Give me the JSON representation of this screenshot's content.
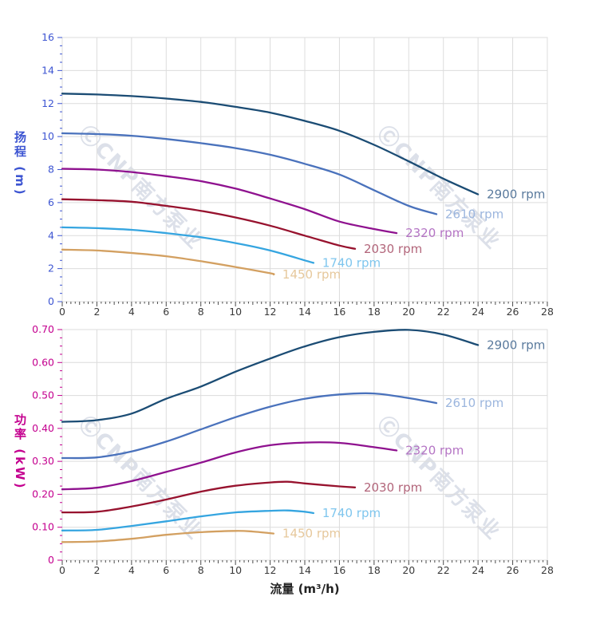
{
  "page": {
    "background": "#ffffff"
  },
  "watermark": {
    "text": "ⒸCNP南方泵业",
    "color": "#dce0e9"
  },
  "chart_data": [
    {
      "type": "line",
      "title": "",
      "xlabel": "",
      "ylabel": "扬程 (m)",
      "xlim": [
        0,
        28
      ],
      "ylim": [
        0,
        16
      ],
      "x_major_step": 2,
      "x_minor_step": 0.25,
      "y_major_step": 2,
      "y_minor_step": 0.5,
      "x_ticks": [
        "0",
        "2",
        "4",
        "6",
        "8",
        "10",
        "12",
        "14",
        "16",
        "18",
        "20",
        "22",
        "24",
        "26",
        "28"
      ],
      "y_ticks": [
        "0",
        "2",
        "4",
        "6",
        "8",
        "10",
        "12",
        "14",
        "16"
      ],
      "y_tick_decimals": 0,
      "grid": true,
      "grid_color": "#dcdcdc",
      "axis_color": "#3d55d2",
      "x_label_color": "#3a3a3a",
      "legend_position": "end-of-curve",
      "series": [
        {
          "name": "2900 rpm",
          "color": "#1b4c74",
          "label_color": "#5a7a9d",
          "points": [
            [
              0,
              12.6
            ],
            [
              2,
              12.55
            ],
            [
              4,
              12.45
            ],
            [
              6,
              12.3
            ],
            [
              8,
              12.1
            ],
            [
              10,
              11.8
            ],
            [
              12,
              11.45
            ],
            [
              14,
              10.95
            ],
            [
              16,
              10.35
            ],
            [
              18,
              9.5
            ],
            [
              20,
              8.5
            ],
            [
              22,
              7.45
            ],
            [
              24,
              6.5
            ]
          ]
        },
        {
          "name": "2610 rpm",
          "color": "#4a72bc",
          "label_color": "#9cb6de",
          "points": [
            [
              0,
              10.2
            ],
            [
              2,
              10.15
            ],
            [
              4,
              10.05
            ],
            [
              6,
              9.85
            ],
            [
              8,
              9.6
            ],
            [
              10,
              9.3
            ],
            [
              12,
              8.9
            ],
            [
              14,
              8.35
            ],
            [
              16,
              7.7
            ],
            [
              18,
              6.75
            ],
            [
              20,
              5.8
            ],
            [
              21.6,
              5.3
            ]
          ]
        },
        {
          "name": "2320 rpm",
          "color": "#8f128f",
          "label_color": "#b474c4",
          "points": [
            [
              0,
              8.05
            ],
            [
              2,
              8.0
            ],
            [
              4,
              7.85
            ],
            [
              6,
              7.6
            ],
            [
              8,
              7.3
            ],
            [
              10,
              6.85
            ],
            [
              12,
              6.25
            ],
            [
              14,
              5.6
            ],
            [
              16,
              4.85
            ],
            [
              18,
              4.4
            ],
            [
              19.3,
              4.15
            ]
          ]
        },
        {
          "name": "2030 rpm",
          "color": "#97122e",
          "label_color": "#b2657a",
          "points": [
            [
              0,
              6.2
            ],
            [
              2,
              6.15
            ],
            [
              4,
              6.05
            ],
            [
              6,
              5.8
            ],
            [
              8,
              5.5
            ],
            [
              10,
              5.1
            ],
            [
              12,
              4.6
            ],
            [
              14,
              4.0
            ],
            [
              16,
              3.4
            ],
            [
              16.9,
              3.2
            ]
          ]
        },
        {
          "name": "1740 rpm",
          "color": "#35a5e0",
          "label_color": "#7fc6ee",
          "points": [
            [
              0,
              4.5
            ],
            [
              2,
              4.45
            ],
            [
              4,
              4.35
            ],
            [
              6,
              4.15
            ],
            [
              8,
              3.9
            ],
            [
              10,
              3.55
            ],
            [
              12,
              3.1
            ],
            [
              14,
              2.5
            ],
            [
              14.5,
              2.35
            ]
          ]
        },
        {
          "name": "1450 rpm",
          "color": "#d3a061",
          "label_color": "#e6c89c",
          "points": [
            [
              0,
              3.15
            ],
            [
              2,
              3.1
            ],
            [
              4,
              2.95
            ],
            [
              6,
              2.75
            ],
            [
              8,
              2.45
            ],
            [
              10,
              2.1
            ],
            [
              12,
              1.72
            ],
            [
              12.2,
              1.65
            ]
          ]
        }
      ]
    },
    {
      "type": "line",
      "title": "",
      "xlabel": "流量 (m³/h)",
      "ylabel": "功率 (kW)",
      "xlim": [
        0,
        28
      ],
      "ylim": [
        0,
        0.7
      ],
      "x_major_step": 2,
      "x_minor_step": 0.25,
      "y_major_step": 0.1,
      "y_minor_step": 0.025,
      "x_ticks": [
        "0",
        "2",
        "4",
        "6",
        "8",
        "10",
        "12",
        "14",
        "16",
        "18",
        "20",
        "22",
        "24",
        "26",
        "28"
      ],
      "y_ticks": [
        "0",
        "0.10",
        "0.20",
        "0.30",
        "0.40",
        "0.50",
        "0.60",
        "0.70"
      ],
      "y_tick_decimals": 2,
      "grid": true,
      "grid_color": "#dcdcdc",
      "axis_color": "#c4008f",
      "x_label_color": "#3a3a3a",
      "legend_position": "end-of-curve",
      "series": [
        {
          "name": "2900 rpm",
          "color": "#1b4c74",
          "label_color": "#5a7a9d",
          "points": [
            [
              0,
              0.42
            ],
            [
              2,
              0.425
            ],
            [
              4,
              0.445
            ],
            [
              6,
              0.49
            ],
            [
              8,
              0.527
            ],
            [
              10,
              0.572
            ],
            [
              12,
              0.612
            ],
            [
              14,
              0.649
            ],
            [
              16,
              0.677
            ],
            [
              18,
              0.693
            ],
            [
              20,
              0.699
            ],
            [
              22,
              0.685
            ],
            [
              24,
              0.653
            ]
          ]
        },
        {
          "name": "2610 rpm",
          "color": "#4a72bc",
          "label_color": "#9cb6de",
          "points": [
            [
              0,
              0.31
            ],
            [
              2,
              0.312
            ],
            [
              4,
              0.33
            ],
            [
              6,
              0.36
            ],
            [
              8,
              0.397
            ],
            [
              10,
              0.434
            ],
            [
              12,
              0.466
            ],
            [
              14,
              0.49
            ],
            [
              16,
              0.503
            ],
            [
              18,
              0.506
            ],
            [
              20,
              0.492
            ],
            [
              21.6,
              0.477
            ]
          ]
        },
        {
          "name": "2320 rpm",
          "color": "#8f128f",
          "label_color": "#b474c4",
          "points": [
            [
              0,
              0.215
            ],
            [
              2,
              0.22
            ],
            [
              4,
              0.24
            ],
            [
              6,
              0.268
            ],
            [
              8,
              0.296
            ],
            [
              10,
              0.327
            ],
            [
              12,
              0.349
            ],
            [
              14,
              0.357
            ],
            [
              16,
              0.356
            ],
            [
              18,
              0.343
            ],
            [
              19.3,
              0.333
            ]
          ]
        },
        {
          "name": "2030 rpm",
          "color": "#97122e",
          "label_color": "#b2657a",
          "points": [
            [
              0,
              0.145
            ],
            [
              2,
              0.147
            ],
            [
              4,
              0.163
            ],
            [
              6,
              0.184
            ],
            [
              8,
              0.208
            ],
            [
              10,
              0.226
            ],
            [
              12,
              0.236
            ],
            [
              13,
              0.238
            ],
            [
              14,
              0.233
            ],
            [
              16,
              0.224
            ],
            [
              16.9,
              0.221
            ]
          ]
        },
        {
          "name": "1740 rpm",
          "color": "#35a5e0",
          "label_color": "#7fc6ee",
          "points": [
            [
              0,
              0.09
            ],
            [
              2,
              0.092
            ],
            [
              4,
              0.104
            ],
            [
              6,
              0.118
            ],
            [
              8,
              0.133
            ],
            [
              10,
              0.145
            ],
            [
              12,
              0.15
            ],
            [
              13,
              0.151
            ],
            [
              14,
              0.147
            ],
            [
              14.5,
              0.143
            ]
          ]
        },
        {
          "name": "1450 rpm",
          "color": "#d3a061",
          "label_color": "#e6c89c",
          "points": [
            [
              0,
              0.055
            ],
            [
              2,
              0.057
            ],
            [
              4,
              0.065
            ],
            [
              6,
              0.077
            ],
            [
              8,
              0.085
            ],
            [
              10,
              0.089
            ],
            [
              11,
              0.087
            ],
            [
              12,
              0.082
            ],
            [
              12.2,
              0.081
            ]
          ]
        }
      ]
    }
  ]
}
